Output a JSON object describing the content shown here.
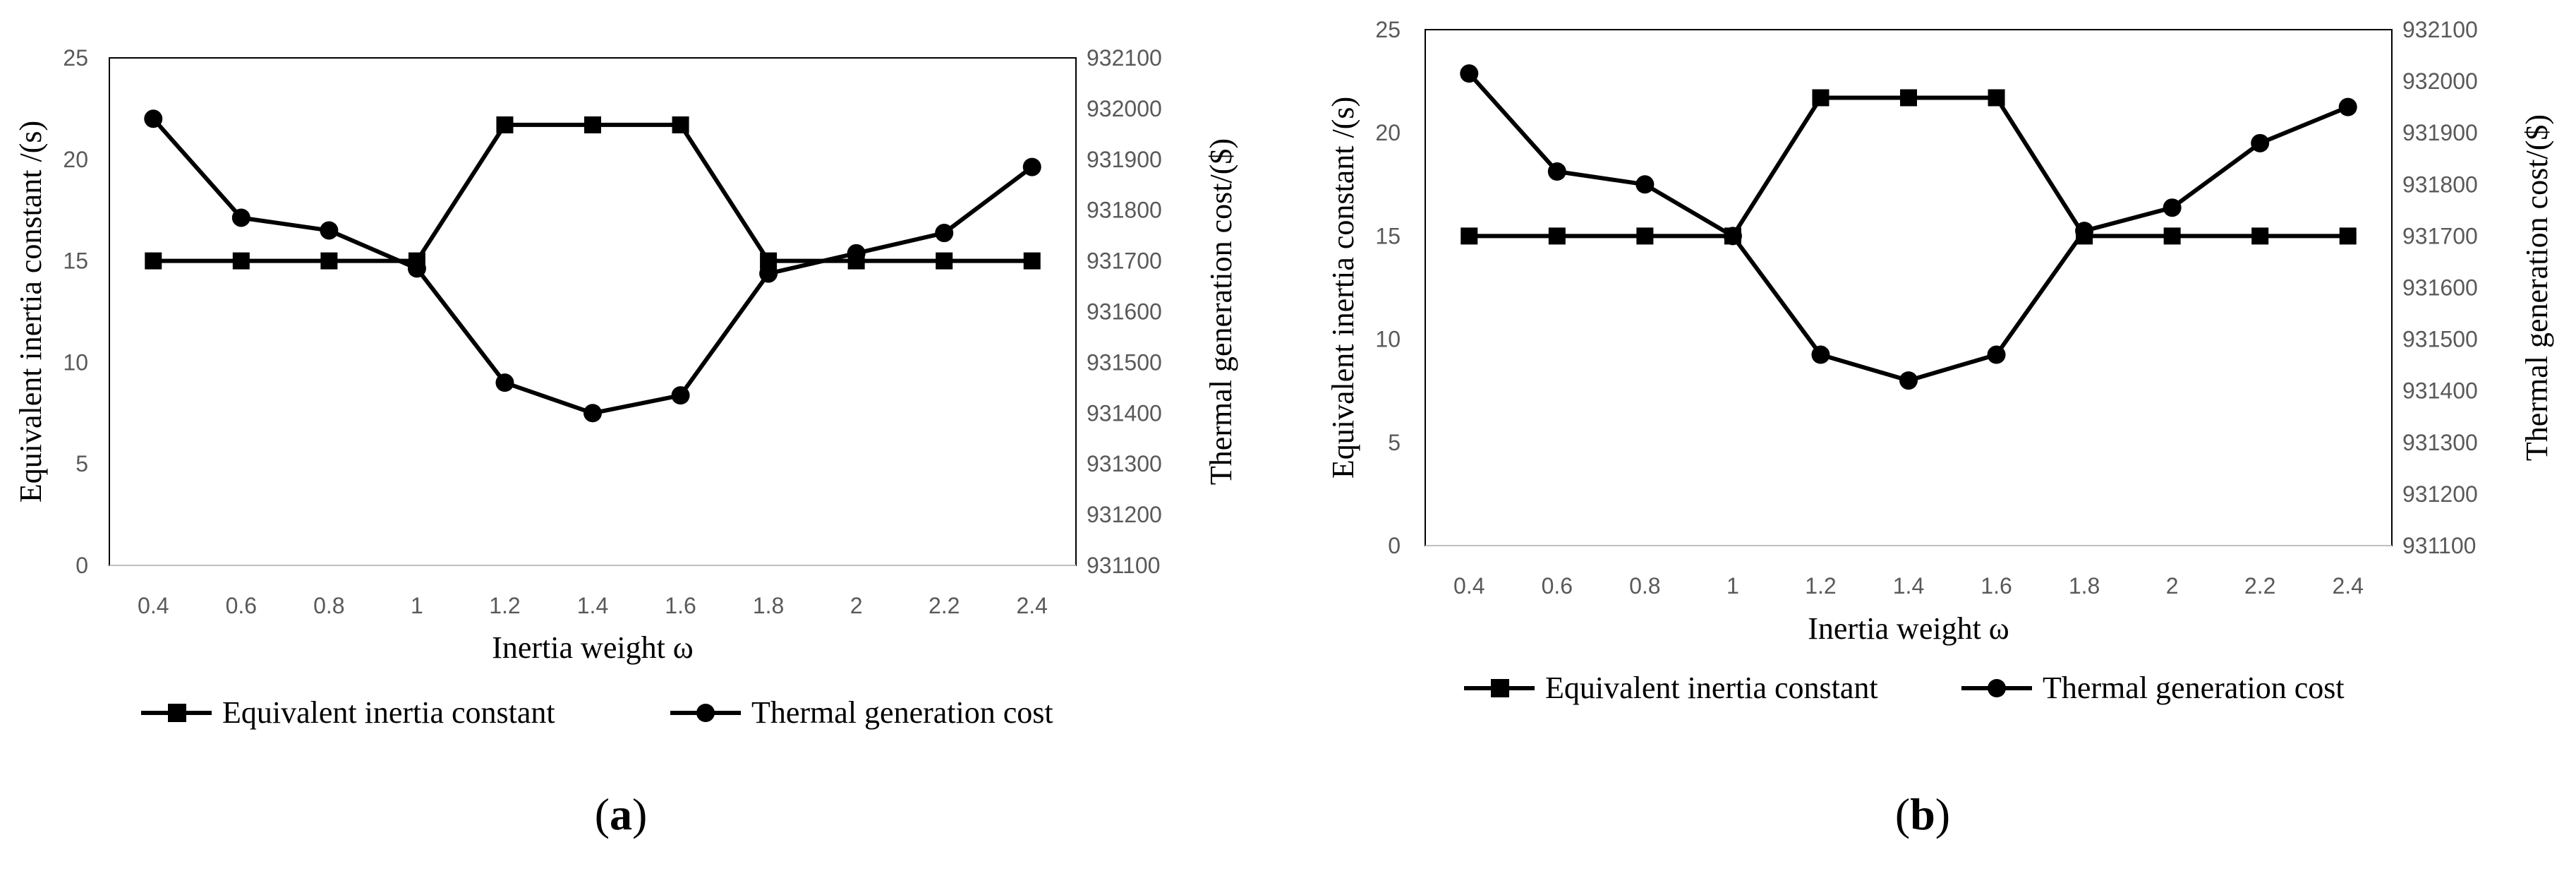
{
  "chart_data": [
    {
      "type": "line",
      "panel_label": "a",
      "categories": [
        "0.4",
        "0.6",
        "0.8",
        "1",
        "1.2",
        "1.4",
        "1.6",
        "1.8",
        "2",
        "2.2",
        "2.4"
      ],
      "xlabel": "Inertia weight ω",
      "ylabel_left": "Equivalent inertia constant /(s)",
      "ylabel_right": "Thermal generation cost/($)",
      "ylim_left": [
        0,
        25
      ],
      "yticks_left": [
        "0",
        "5",
        "10",
        "15",
        "20",
        "25"
      ],
      "ylim_right": [
        931100,
        932100
      ],
      "yticks_right": [
        "931100",
        "931200",
        "931300",
        "931400",
        "931500",
        "931600",
        "931700",
        "931800",
        "931900",
        "932000",
        "932100"
      ],
      "series": [
        {
          "name": "Equivalent inertia constant",
          "axis": "left",
          "marker": "square",
          "values": [
            15,
            15,
            15,
            15,
            21.7,
            21.7,
            21.7,
            15,
            15,
            15,
            15
          ]
        },
        {
          "name": "Thermal generation cost",
          "axis": "right",
          "marker": "circle",
          "values": [
            931980,
            931785,
            931760,
            931685,
            931460,
            931400,
            931435,
            931675,
            931715,
            931755,
            931885
          ]
        }
      ],
      "legend": [
        "Equivalent inertia constant",
        "Thermal generation cost"
      ],
      "legend_position": "bottom"
    },
    {
      "type": "line",
      "panel_label": "b",
      "categories": [
        "0.4",
        "0.6",
        "0.8",
        "1",
        "1.2",
        "1.4",
        "1.6",
        "1.8",
        "2",
        "2.2",
        "2.4"
      ],
      "xlabel": "Inertia weight ω",
      "ylabel_left": "Equivalent inertia constant /(s)",
      "ylabel_right": "Thermal generation cost/($)",
      "ylim_left": [
        0,
        25
      ],
      "yticks_left": [
        "0",
        "5",
        "10",
        "15",
        "20",
        "25"
      ],
      "ylim_right": [
        931100,
        932100
      ],
      "yticks_right": [
        "931100",
        "931200",
        "931300",
        "931400",
        "931500",
        "931600",
        "931700",
        "931800",
        "931900",
        "932000",
        "932100"
      ],
      "series": [
        {
          "name": "Equivalent inertia constant",
          "axis": "left",
          "marker": "square",
          "values": [
            15,
            15,
            15,
            15,
            21.7,
            21.7,
            21.7,
            15,
            15,
            15,
            15
          ]
        },
        {
          "name": "Thermal generation cost",
          "axis": "right",
          "marker": "circle",
          "values": [
            932015,
            931825,
            931800,
            931700,
            931470,
            931420,
            931470,
            931710,
            931755,
            931880,
            931950
          ]
        }
      ],
      "legend": [
        "Equivalent inertia constant",
        "Thermal generation cost"
      ],
      "legend_position": "bottom"
    }
  ]
}
